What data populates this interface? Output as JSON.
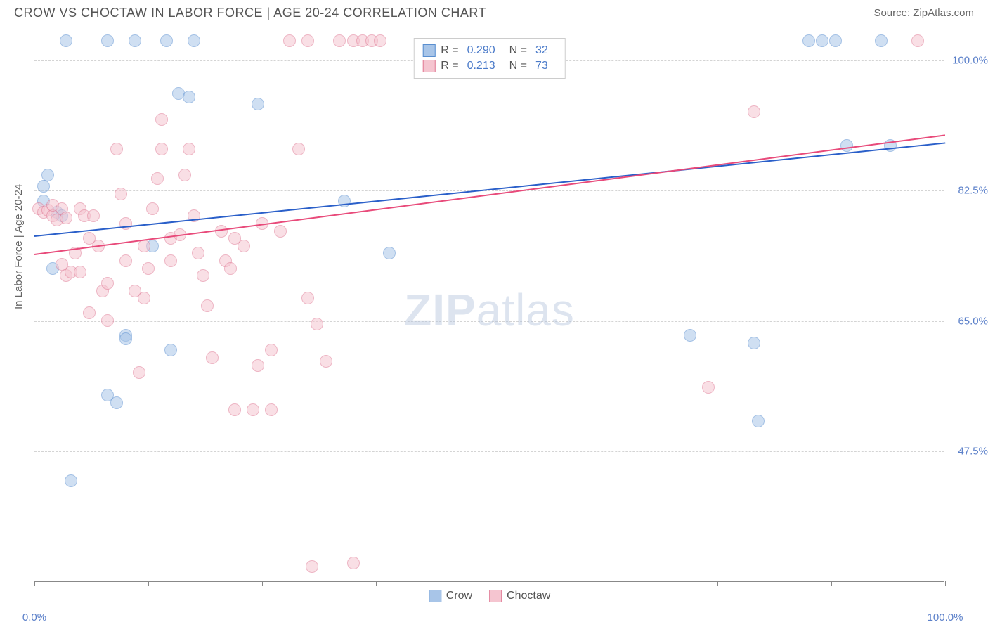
{
  "title": "CROW VS CHOCTAW IN LABOR FORCE | AGE 20-24 CORRELATION CHART",
  "source": "Source: ZipAtlas.com",
  "y_axis_label": "In Labor Force | Age 20-24",
  "watermark_bold": "ZIP",
  "watermark_light": "atlas",
  "chart": {
    "type": "scatter",
    "xlim": [
      0,
      100
    ],
    "ylim": [
      30,
      103
    ],
    "x_ticks": [
      0,
      12.5,
      25,
      37.5,
      50,
      62.5,
      75,
      87.5,
      100
    ],
    "x_tick_labels": {
      "0": "0.0%",
      "100": "100.0%"
    },
    "y_gridlines": [
      47.5,
      65.0,
      82.5,
      100.0
    ],
    "y_tick_labels": [
      "47.5%",
      "65.0%",
      "82.5%",
      "100.0%"
    ],
    "background_color": "#ffffff",
    "grid_color": "#d4d4d4",
    "axis_color": "#888888",
    "label_color": "#666666",
    "tick_label_color": "#5a7fc9",
    "point_radius": 9,
    "point_opacity": 0.55,
    "series": [
      {
        "name": "Crow",
        "color_fill": "#a8c5e8",
        "color_stroke": "#5a8fd0",
        "R": "0.290",
        "N": "32",
        "trend": {
          "x1": 0,
          "y1": 76.5,
          "x2": 100,
          "y2": 89.0,
          "color": "#2a5fc9",
          "width": 2
        },
        "points": [
          [
            1,
            81
          ],
          [
            1,
            83
          ],
          [
            1.5,
            84.5
          ],
          [
            2,
            72
          ],
          [
            2.5,
            79.5
          ],
          [
            3,
            79
          ],
          [
            3.5,
            102.5
          ],
          [
            4,
            43.5
          ],
          [
            8,
            102.5
          ],
          [
            8,
            55
          ],
          [
            9,
            54
          ],
          [
            10,
            63
          ],
          [
            10,
            62.5
          ],
          [
            11,
            102.5
          ],
          [
            13,
            75
          ],
          [
            14.5,
            102.5
          ],
          [
            15,
            61
          ],
          [
            15.8,
            95.5
          ],
          [
            17,
            95
          ],
          [
            17.5,
            102.5
          ],
          [
            24.5,
            94
          ],
          [
            34,
            81
          ],
          [
            39,
            74
          ],
          [
            72,
            63
          ],
          [
            79,
            62
          ],
          [
            79.5,
            51.5
          ],
          [
            85,
            102.5
          ],
          [
            86.5,
            102.5
          ],
          [
            88,
            102.5
          ],
          [
            89.2,
            88.5
          ],
          [
            93,
            102.5
          ],
          [
            94,
            88.5
          ]
        ]
      },
      {
        "name": "Choctaw",
        "color_fill": "#f5c5d0",
        "color_stroke": "#e07a95",
        "R": "0.213",
        "N": "73",
        "trend": {
          "x1": 0,
          "y1": 74.0,
          "x2": 100,
          "y2": 90.0,
          "color": "#e84a7a",
          "width": 2
        },
        "points": [
          [
            0.5,
            80
          ],
          [
            1,
            79.5
          ],
          [
            1.5,
            79.8
          ],
          [
            2,
            79
          ],
          [
            2.5,
            78.5
          ],
          [
            2,
            80.5
          ],
          [
            3,
            80
          ],
          [
            3.5,
            78.8
          ],
          [
            3,
            72.5
          ],
          [
            3.5,
            71
          ],
          [
            4,
            71.5
          ],
          [
            4.5,
            74
          ],
          [
            5,
            80
          ],
          [
            5.5,
            79
          ],
          [
            5,
            71.5
          ],
          [
            6,
            66
          ],
          [
            6,
            76
          ],
          [
            6.5,
            79
          ],
          [
            7,
            75
          ],
          [
            7.5,
            69
          ],
          [
            8,
            70
          ],
          [
            8,
            65
          ],
          [
            9,
            88
          ],
          [
            9.5,
            82
          ],
          [
            10,
            78
          ],
          [
            10,
            73
          ],
          [
            11,
            69
          ],
          [
            11.5,
            58
          ],
          [
            12,
            75
          ],
          [
            12,
            68
          ],
          [
            12.5,
            72
          ],
          [
            13,
            80
          ],
          [
            13.5,
            84
          ],
          [
            14,
            88
          ],
          [
            14,
            92
          ],
          [
            15,
            76
          ],
          [
            15,
            73
          ],
          [
            16,
            76.5
          ],
          [
            16.5,
            84.5
          ],
          [
            17,
            88
          ],
          [
            17.5,
            79
          ],
          [
            18,
            74
          ],
          [
            18.5,
            71
          ],
          [
            19,
            67
          ],
          [
            19.5,
            60
          ],
          [
            20.5,
            77
          ],
          [
            21,
            73
          ],
          [
            21.5,
            72
          ],
          [
            22,
            76
          ],
          [
            22,
            53
          ],
          [
            23,
            75
          ],
          [
            24,
            53
          ],
          [
            24.5,
            59
          ],
          [
            25,
            78
          ],
          [
            26,
            61
          ],
          [
            26,
            53
          ],
          [
            27,
            77
          ],
          [
            28,
            102.5
          ],
          [
            29,
            88
          ],
          [
            30,
            68
          ],
          [
            30,
            102.5
          ],
          [
            30.5,
            32
          ],
          [
            31,
            64.5
          ],
          [
            32,
            59.5
          ],
          [
            33.5,
            102.5
          ],
          [
            35,
            102.5
          ],
          [
            35,
            32.5
          ],
          [
            36,
            102.5
          ],
          [
            37,
            102.5
          ],
          [
            38,
            102.5
          ],
          [
            74,
            56
          ],
          [
            79,
            93
          ],
          [
            97,
            102.5
          ]
        ]
      }
    ],
    "legend_top": {
      "rows": [
        {
          "swatch_fill": "#a8c5e8",
          "swatch_stroke": "#5a8fd0",
          "r_label": "R =",
          "r_val": "0.290",
          "n_label": "N =",
          "n_val": "32"
        },
        {
          "swatch_fill": "#f5c5d0",
          "swatch_stroke": "#e07a95",
          "r_label": "R =",
          "r_val": " 0.213",
          "n_label": "N =",
          "n_val": "73"
        }
      ]
    },
    "legend_bottom": [
      {
        "swatch_fill": "#a8c5e8",
        "swatch_stroke": "#5a8fd0",
        "label": "Crow"
      },
      {
        "swatch_fill": "#f5c5d0",
        "swatch_stroke": "#e07a95",
        "label": "Choctaw"
      }
    ]
  }
}
